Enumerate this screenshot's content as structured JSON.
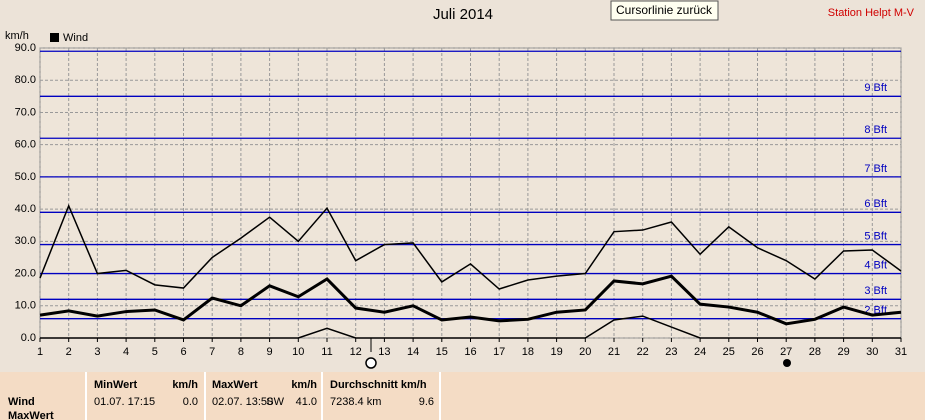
{
  "chart_data": {
    "type": "line",
    "title": "Juli 2014",
    "y_unit": "km/h",
    "x": [
      1,
      2,
      3,
      4,
      5,
      6,
      7,
      8,
      9,
      10,
      11,
      12,
      13,
      14,
      15,
      16,
      17,
      18,
      19,
      20,
      21,
      22,
      23,
      24,
      25,
      26,
      27,
      28,
      29,
      30,
      31
    ],
    "xlim": [
      1,
      31
    ],
    "xticks": [
      1,
      2,
      3,
      4,
      5,
      6,
      7,
      8,
      9,
      10,
      11,
      12,
      13,
      14,
      15,
      16,
      17,
      18,
      19,
      20,
      21,
      22,
      23,
      24,
      25,
      26,
      27,
      28,
      29,
      30,
      31
    ],
    "ylim": [
      0,
      90
    ],
    "yticks": [
      {
        "value": 0,
        "label": "0.0"
      },
      {
        "value": 10,
        "label": "10.0"
      },
      {
        "value": 20,
        "label": "20.0"
      },
      {
        "value": 30,
        "label": "30.0"
      },
      {
        "value": 40,
        "label": "40.0"
      },
      {
        "value": 50,
        "label": "50.0"
      },
      {
        "value": 60,
        "label": "60.0"
      },
      {
        "value": 70,
        "label": "70.0"
      },
      {
        "value": 80,
        "label": "80.0"
      },
      {
        "value": 90,
        "label": "90.0"
      }
    ],
    "grid": true,
    "bft_color": "#0000c0",
    "bft_lines": [
      {
        "value": 6,
        "label": "2 Bft"
      },
      {
        "value": 12,
        "label": "3 Bft"
      },
      {
        "value": 20,
        "label": "4 Bft"
      },
      {
        "value": 29,
        "label": "5 Bft"
      },
      {
        "value": 39,
        "label": "6 Bft"
      },
      {
        "value": 50,
        "label": "7 Bft"
      },
      {
        "value": 62,
        "label": "8 Bft"
      },
      {
        "value": 75,
        "label": "9 Bft"
      },
      {
        "value": 89
      }
    ],
    "series": [
      {
        "name": "Wind",
        "color": "#000000",
        "max": [
          18.6,
          41,
          20,
          21,
          16.5,
          15.5,
          25,
          31,
          37.5,
          30,
          40.3,
          24,
          29,
          29.5,
          17.4,
          23,
          15.2,
          18,
          19.2,
          20,
          33,
          33.5,
          36,
          26,
          34.5,
          28,
          24,
          18.3,
          27,
          27.3,
          20.8
        ],
        "mean": [
          7.1,
          8.4,
          6.8,
          8.2,
          8.7,
          5.6,
          12.4,
          10,
          16.2,
          12.8,
          18.3,
          9.3,
          8,
          10,
          5.6,
          6.5,
          5.3,
          5.8,
          8,
          8.7,
          17.7,
          16.8,
          19.2,
          10.5,
          9.6,
          8,
          4.4,
          5.8,
          9.6,
          7.1,
          8
        ],
        "min": [
          0,
          0,
          0,
          0,
          0,
          0,
          0,
          0,
          0,
          0,
          3,
          0,
          0,
          0,
          0,
          0,
          0,
          0,
          0,
          0,
          5.6,
          6.8,
          3.4,
          0,
          0,
          0,
          0,
          0,
          0,
          0,
          0
        ]
      }
    ]
  },
  "ui": {
    "button": "Cursorlinie zurück",
    "station": "Station Helpt M-V"
  },
  "info_panel": {
    "row_labels": [
      "Wind",
      "MaxWert"
    ],
    "columns": [
      {
        "header": [
          "MinWert",
          "km/h"
        ],
        "cells": [
          "01.07.  17:15",
          "0.0"
        ]
      },
      {
        "header": [
          "MaxWert",
          "km/h"
        ],
        "cells": [
          "02.07.  13:50",
          "SW",
          "41.0"
        ]
      },
      {
        "header": [
          "Durchschnitt km/h"
        ],
        "cells": [
          "7238.4 km",
          "9.6"
        ]
      }
    ]
  }
}
